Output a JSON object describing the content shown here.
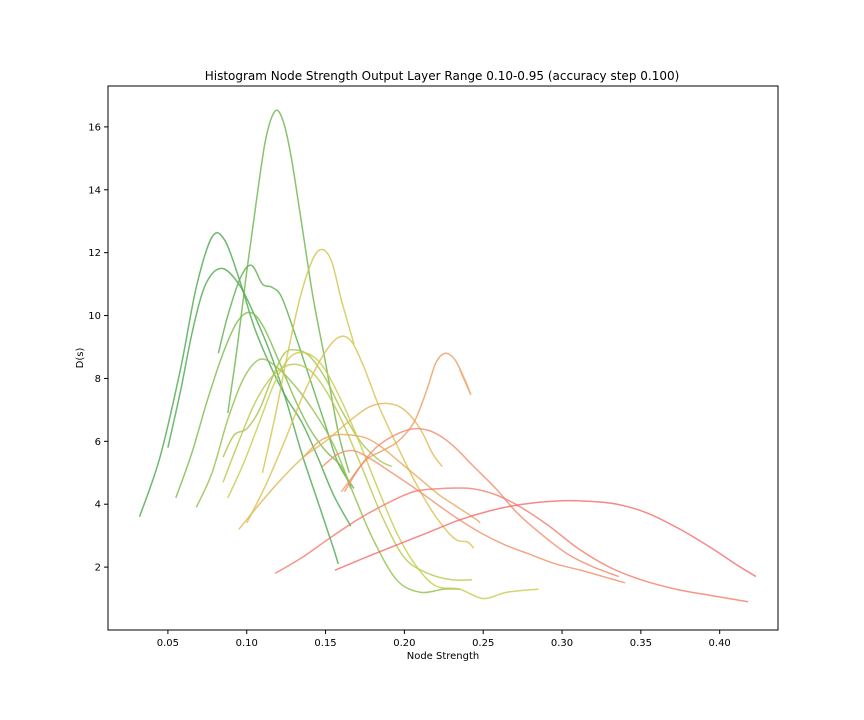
{
  "chart_data": {
    "type": "line",
    "title": "Histogram Node Strength Output Layer Range 0.10-0.95 (accuracy step 0.100)",
    "xlabel": "Node Strength",
    "ylabel": "D(s)",
    "xlim": [
      0.012,
      0.437
    ],
    "ylim": [
      0.0,
      17.3
    ],
    "xticks": [
      0.05,
      0.1,
      0.15,
      0.2,
      0.25,
      0.3,
      0.35,
      0.4
    ],
    "xtick_labels": [
      "0.05",
      "0.10",
      "0.15",
      "0.20",
      "0.25",
      "0.30",
      "0.35",
      "0.40"
    ],
    "yticks": [
      2,
      4,
      6,
      8,
      10,
      12,
      14,
      16
    ],
    "ytick_labels": [
      "2",
      "4",
      "6",
      "8",
      "10",
      "12",
      "14",
      "16"
    ],
    "grid": false,
    "legend": "none",
    "series": [
      {
        "color": "#4aa84a",
        "points": [
          [
            0.032,
            3.6
          ],
          [
            0.045,
            5.5
          ],
          [
            0.058,
            8.3
          ],
          [
            0.068,
            10.9
          ],
          [
            0.078,
            12.5
          ],
          [
            0.086,
            12.4
          ],
          [
            0.095,
            11.2
          ],
          [
            0.105,
            9.6
          ],
          [
            0.115,
            8.4
          ],
          [
            0.125,
            7.4
          ],
          [
            0.135,
            6.6
          ],
          [
            0.145,
            5.5
          ],
          [
            0.155,
            4.3
          ],
          [
            0.166,
            3.3
          ]
        ]
      },
      {
        "color": "#4aa84a",
        "points": [
          [
            0.05,
            5.8
          ],
          [
            0.058,
            7.6
          ],
          [
            0.066,
            9.6
          ],
          [
            0.074,
            11.0
          ],
          [
            0.084,
            11.5
          ],
          [
            0.095,
            11.0
          ],
          [
            0.105,
            10.0
          ],
          [
            0.115,
            8.8
          ],
          [
            0.125,
            7.3
          ],
          [
            0.135,
            5.6
          ],
          [
            0.145,
            4.1
          ],
          [
            0.155,
            2.6
          ],
          [
            0.158,
            2.1
          ]
        ]
      },
      {
        "color": "#5aae4a",
        "points": [
          [
            0.082,
            8.8
          ],
          [
            0.088,
            10.0
          ],
          [
            0.096,
            11.2
          ],
          [
            0.103,
            11.6
          ],
          [
            0.11,
            11.0
          ],
          [
            0.116,
            10.9
          ],
          [
            0.122,
            10.6
          ],
          [
            0.13,
            9.5
          ],
          [
            0.14,
            8.0
          ],
          [
            0.15,
            6.5
          ],
          [
            0.158,
            5.3
          ],
          [
            0.168,
            4.5
          ]
        ]
      },
      {
        "color": "#6ab44a",
        "points": [
          [
            0.088,
            6.9
          ],
          [
            0.094,
            9.0
          ],
          [
            0.1,
            11.4
          ],
          [
            0.106,
            13.6
          ],
          [
            0.112,
            15.6
          ],
          [
            0.118,
            16.5
          ],
          [
            0.123,
            16.2
          ],
          [
            0.128,
            15.1
          ],
          [
            0.134,
            13.2
          ],
          [
            0.142,
            10.6
          ],
          [
            0.15,
            8.5
          ],
          [
            0.158,
            6.3
          ],
          [
            0.165,
            5.0
          ]
        ]
      },
      {
        "color": "#7aba4a",
        "points": [
          [
            0.055,
            4.2
          ],
          [
            0.065,
            5.6
          ],
          [
            0.075,
            7.3
          ],
          [
            0.085,
            8.8
          ],
          [
            0.094,
            9.8
          ],
          [
            0.102,
            10.1
          ],
          [
            0.11,
            9.7
          ],
          [
            0.12,
            8.6
          ],
          [
            0.13,
            7.4
          ],
          [
            0.14,
            6.4
          ],
          [
            0.15,
            5.7
          ],
          [
            0.16,
            5.2
          ],
          [
            0.166,
            4.5
          ]
        ]
      },
      {
        "color": "#8ebf4a",
        "points": [
          [
            0.068,
            3.9
          ],
          [
            0.078,
            5.0
          ],
          [
            0.088,
            6.7
          ],
          [
            0.098,
            8.0
          ],
          [
            0.108,
            8.6
          ],
          [
            0.118,
            8.4
          ],
          [
            0.13,
            7.8
          ],
          [
            0.142,
            7.0
          ],
          [
            0.155,
            5.9
          ],
          [
            0.168,
            4.3
          ],
          [
            0.18,
            2.9
          ],
          [
            0.195,
            1.6
          ],
          [
            0.21,
            1.2
          ],
          [
            0.225,
            1.3
          ],
          [
            0.235,
            1.3
          ]
        ]
      },
      {
        "color": "#a4c44a",
        "points": [
          [
            0.085,
            5.5
          ],
          [
            0.092,
            6.2
          ],
          [
            0.1,
            6.4
          ],
          [
            0.108,
            7.0
          ],
          [
            0.116,
            8.0
          ],
          [
            0.124,
            8.8
          ],
          [
            0.132,
            8.9
          ],
          [
            0.14,
            8.7
          ],
          [
            0.15,
            8.0
          ],
          [
            0.16,
            7.0
          ],
          [
            0.172,
            6.0
          ],
          [
            0.184,
            5.4
          ],
          [
            0.192,
            5.2
          ]
        ]
      },
      {
        "color": "#b8c84a",
        "points": [
          [
            0.085,
            4.7
          ],
          [
            0.095,
            6.0
          ],
          [
            0.105,
            7.2
          ],
          [
            0.115,
            8.0
          ],
          [
            0.125,
            8.4
          ],
          [
            0.135,
            8.4
          ],
          [
            0.145,
            8.0
          ],
          [
            0.158,
            6.9
          ],
          [
            0.172,
            5.3
          ],
          [
            0.186,
            3.6
          ],
          [
            0.2,
            2.3
          ],
          [
            0.215,
            1.8
          ],
          [
            0.23,
            1.6
          ],
          [
            0.243,
            1.6
          ]
        ]
      },
      {
        "color": "#c8cc4a",
        "points": [
          [
            0.088,
            4.2
          ],
          [
            0.098,
            5.3
          ],
          [
            0.108,
            6.6
          ],
          [
            0.118,
            7.9
          ],
          [
            0.128,
            8.7
          ],
          [
            0.138,
            8.8
          ],
          [
            0.148,
            8.4
          ],
          [
            0.16,
            7.3
          ],
          [
            0.172,
            5.9
          ],
          [
            0.184,
            4.4
          ],
          [
            0.196,
            3.0
          ],
          [
            0.208,
            2.0
          ],
          [
            0.22,
            1.4
          ],
          [
            0.235,
            1.3
          ],
          [
            0.25,
            1.0
          ],
          [
            0.265,
            1.2
          ],
          [
            0.285,
            1.3
          ]
        ]
      },
      {
        "color": "#d2c44a",
        "points": [
          [
            0.11,
            5.0
          ],
          [
            0.118,
            6.8
          ],
          [
            0.126,
            8.8
          ],
          [
            0.134,
            10.6
          ],
          [
            0.142,
            11.8
          ],
          [
            0.148,
            12.1
          ],
          [
            0.154,
            11.7
          ],
          [
            0.16,
            10.5
          ],
          [
            0.168,
            9.1
          ]
        ]
      },
      {
        "color": "#dcc04e",
        "points": [
          [
            0.1,
            3.4
          ],
          [
            0.112,
            4.6
          ],
          [
            0.124,
            6.0
          ],
          [
            0.136,
            7.5
          ],
          [
            0.148,
            8.7
          ],
          [
            0.158,
            9.3
          ],
          [
            0.166,
            9.2
          ],
          [
            0.174,
            8.4
          ],
          [
            0.184,
            7.1
          ],
          [
            0.196,
            5.8
          ],
          [
            0.208,
            4.6
          ],
          [
            0.22,
            3.6
          ],
          [
            0.232,
            2.9
          ],
          [
            0.24,
            2.8
          ],
          [
            0.244,
            2.6
          ]
        ]
      },
      {
        "color": "#e0b854",
        "points": [
          [
            0.095,
            3.2
          ],
          [
            0.108,
            4.0
          ],
          [
            0.122,
            4.8
          ],
          [
            0.136,
            5.5
          ],
          [
            0.15,
            6.0
          ],
          [
            0.164,
            6.6
          ],
          [
            0.178,
            7.1
          ],
          [
            0.19,
            7.2
          ],
          [
            0.2,
            7.0
          ],
          [
            0.21,
            6.4
          ],
          [
            0.218,
            5.6
          ],
          [
            0.224,
            5.2
          ]
        ]
      },
      {
        "color": "#e8a85a",
        "points": [
          [
            0.136,
            5.5
          ],
          [
            0.146,
            6.0
          ],
          [
            0.156,
            6.2
          ],
          [
            0.166,
            6.2
          ],
          [
            0.176,
            6.1
          ],
          [
            0.186,
            5.8
          ],
          [
            0.198,
            5.3
          ],
          [
            0.21,
            4.8
          ],
          [
            0.222,
            4.3
          ],
          [
            0.234,
            3.9
          ],
          [
            0.246,
            3.5
          ],
          [
            0.248,
            3.4
          ]
        ]
      },
      {
        "color": "#ec9c5e",
        "points": [
          [
            0.16,
            4.4
          ],
          [
            0.166,
            4.8
          ],
          [
            0.172,
            5.2
          ],
          [
            0.178,
            5.5
          ],
          [
            0.186,
            5.7
          ],
          [
            0.196,
            6.0
          ],
          [
            0.206,
            6.6
          ],
          [
            0.214,
            7.6
          ],
          [
            0.22,
            8.5
          ],
          [
            0.226,
            8.8
          ],
          [
            0.232,
            8.6
          ],
          [
            0.238,
            8.0
          ],
          [
            0.242,
            7.5
          ],
          [
            0.235,
            8.3
          ]
        ]
      },
      {
        "color": "#f0906a",
        "points": [
          [
            0.148,
            5.2
          ],
          [
            0.158,
            5.6
          ],
          [
            0.168,
            5.7
          ],
          [
            0.18,
            5.4
          ],
          [
            0.192,
            5.0
          ],
          [
            0.204,
            4.6
          ],
          [
            0.218,
            4.1
          ],
          [
            0.232,
            3.6
          ],
          [
            0.248,
            3.1
          ],
          [
            0.264,
            2.7
          ],
          [
            0.28,
            2.4
          ],
          [
            0.296,
            2.1
          ],
          [
            0.312,
            1.9
          ],
          [
            0.326,
            1.7
          ],
          [
            0.34,
            1.5
          ]
        ]
      },
      {
        "color": "#f4886c",
        "points": [
          [
            0.162,
            4.4
          ],
          [
            0.172,
            5.2
          ],
          [
            0.182,
            5.8
          ],
          [
            0.194,
            6.2
          ],
          [
            0.206,
            6.4
          ],
          [
            0.218,
            6.3
          ],
          [
            0.23,
            5.9
          ],
          [
            0.244,
            5.2
          ],
          [
            0.258,
            4.5
          ],
          [
            0.272,
            3.7
          ],
          [
            0.288,
            3.0
          ],
          [
            0.304,
            2.4
          ],
          [
            0.32,
            2.0
          ],
          [
            0.336,
            1.7
          ]
        ]
      },
      {
        "color": "#f47a6a",
        "points": [
          [
            0.118,
            1.8
          ],
          [
            0.135,
            2.3
          ],
          [
            0.152,
            2.9
          ],
          [
            0.17,
            3.5
          ],
          [
            0.188,
            4.0
          ],
          [
            0.206,
            4.4
          ],
          [
            0.224,
            4.5
          ],
          [
            0.242,
            4.5
          ],
          [
            0.258,
            4.3
          ],
          [
            0.274,
            3.9
          ],
          [
            0.292,
            3.3
          ],
          [
            0.31,
            2.6
          ],
          [
            0.33,
            2.0
          ],
          [
            0.35,
            1.6
          ],
          [
            0.372,
            1.3
          ],
          [
            0.394,
            1.1
          ],
          [
            0.418,
            0.9
          ]
        ]
      },
      {
        "color": "#f46a6a",
        "points": [
          [
            0.156,
            1.9
          ],
          [
            0.175,
            2.3
          ],
          [
            0.195,
            2.7
          ],
          [
            0.215,
            3.1
          ],
          [
            0.235,
            3.5
          ],
          [
            0.255,
            3.8
          ],
          [
            0.275,
            4.0
          ],
          [
            0.295,
            4.1
          ],
          [
            0.315,
            4.1
          ],
          [
            0.335,
            4.0
          ],
          [
            0.355,
            3.7
          ],
          [
            0.375,
            3.2
          ],
          [
            0.395,
            2.6
          ],
          [
            0.41,
            2.1
          ],
          [
            0.423,
            1.7
          ]
        ]
      }
    ]
  }
}
